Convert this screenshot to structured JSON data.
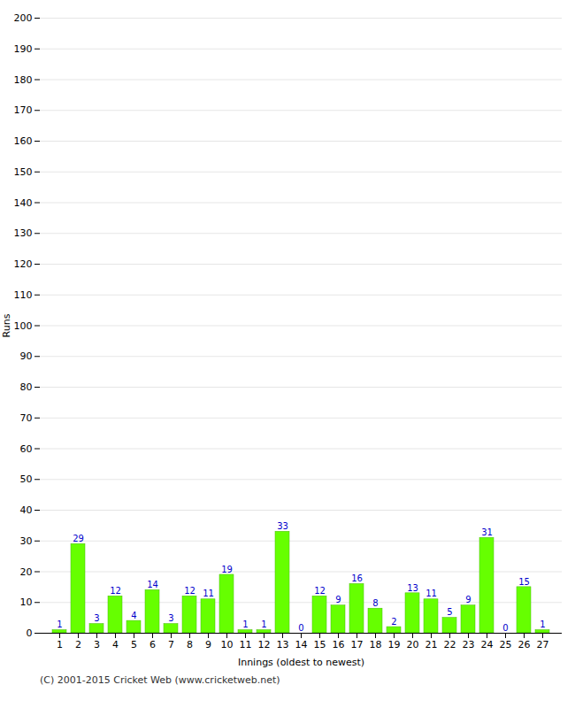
{
  "chart_data": {
    "type": "bar",
    "xlabel": "Innings (oldest to newest)",
    "ylabel": "Runs",
    "categories": [
      1,
      2,
      3,
      4,
      5,
      6,
      7,
      8,
      9,
      10,
      11,
      12,
      13,
      14,
      15,
      16,
      17,
      18,
      19,
      20,
      21,
      22,
      23,
      24,
      25,
      26,
      27
    ],
    "values": [
      1,
      29,
      3,
      12,
      4,
      14,
      3,
      12,
      11,
      19,
      1,
      1,
      33,
      0,
      12,
      9,
      16,
      8,
      2,
      13,
      11,
      5,
      9,
      31,
      0,
      15,
      1
    ],
    "color": "#66ff00",
    "ylim": [
      0,
      200
    ],
    "yticks": [
      0,
      10,
      20,
      30,
      40,
      50,
      60,
      70,
      80,
      90,
      100,
      110,
      120,
      130,
      140,
      150,
      160,
      170,
      180,
      190,
      200
    ],
    "grid": true,
    "data_labels": true,
    "annotations": [
      "(C) 2001-2015 Cricket Web (www.cricketweb.net)"
    ]
  }
}
